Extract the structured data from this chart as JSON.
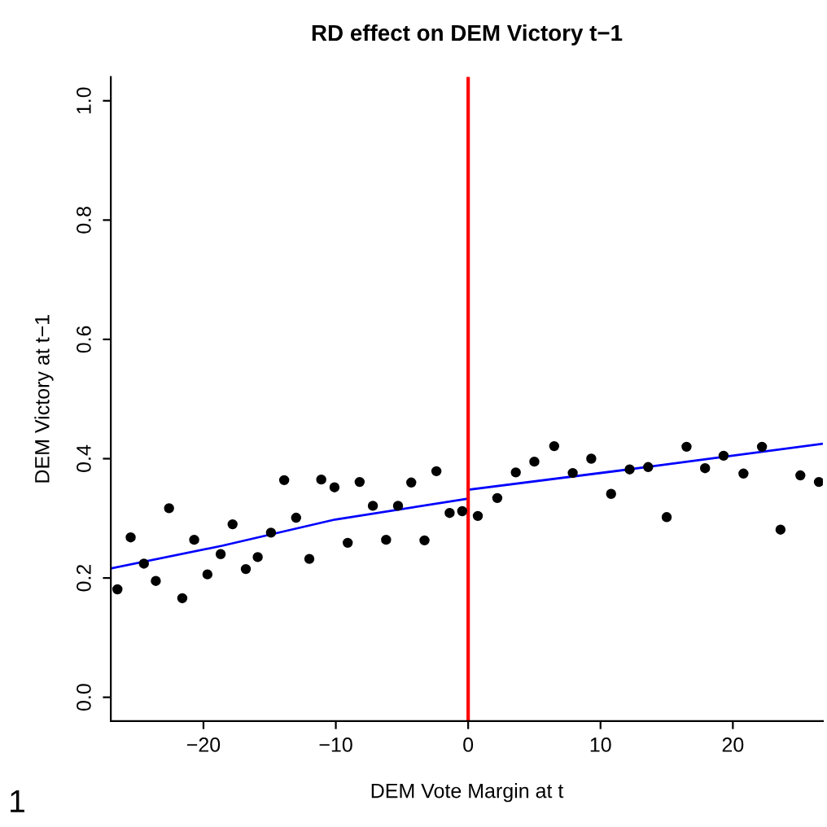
{
  "chart_data": {
    "type": "scatter",
    "title": "RD effect on DEM Victory t−1",
    "xlabel": "DEM Vote Margin at t",
    "ylabel": "DEM Victory at t−1",
    "xlim": [
      -27,
      26.8
    ],
    "ylim": [
      -0.04,
      1.04
    ],
    "xticks": [
      {
        "value": -20,
        "label": "−20"
      },
      {
        "value": -10,
        "label": "−10"
      },
      0,
      10,
      20
    ],
    "yticks": [
      {
        "value": 0,
        "label": "0.0"
      },
      {
        "value": 0.2,
        "label": "0.2"
      },
      {
        "value": 0.4,
        "label": "0.4"
      },
      {
        "value": 0.6,
        "label": "0.6"
      },
      {
        "value": 0.8,
        "label": "0.8"
      },
      {
        "value": 1,
        "label": "1.0"
      }
    ],
    "grid": false,
    "series": [
      {
        "color": "#000000",
        "marker": "circle",
        "x": [
          -26.5,
          -25.5,
          -24.5,
          -23.6,
          -22.6,
          -21.6,
          -20.7,
          -19.7,
          -18.7,
          -17.8,
          -16.8,
          -15.9,
          -14.9,
          -13.9,
          -13.0,
          -12.0,
          -11.1,
          -10.1,
          -9.1,
          -8.2,
          -7.2,
          -6.2,
          -5.3,
          -4.3,
          -3.3,
          -2.4,
          -1.4,
          -0.45,
          0.73,
          2.2,
          3.6,
          5.0,
          6.5,
          7.9,
          9.3,
          10.8,
          12.2,
          13.6,
          15.0,
          16.5,
          17.9,
          19.3,
          20.8,
          22.2,
          23.6,
          25.1,
          26.5
        ],
        "values": [
          0.181,
          0.268,
          0.224,
          0.195,
          0.317,
          0.166,
          0.264,
          0.206,
          0.24,
          0.29,
          0.215,
          0.235,
          0.276,
          0.364,
          0.301,
          0.232,
          0.365,
          0.352,
          0.259,
          0.361,
          0.321,
          0.264,
          0.321,
          0.36,
          0.263,
          0.379,
          0.309,
          0.312,
          0.304,
          0.334,
          0.377,
          0.395,
          0.421,
          0.376,
          0.4,
          0.341,
          0.382,
          0.386,
          0.302,
          0.42,
          0.384,
          0.405,
          0.375,
          0.42,
          0.281,
          0.372,
          0.361
        ]
      },
      {
        "type": "line",
        "color": "#0000ff",
        "line_style": "solid",
        "x": [
          -27,
          -18.6,
          -10.06,
          0
        ],
        "values": [
          0.216,
          0.254,
          0.298,
          0.333
        ]
      },
      {
        "type": "line",
        "color": "#0000ff",
        "line_style": "solid",
        "x": [
          0,
          13.2,
          26.8
        ],
        "values": [
          0.348,
          0.385,
          0.425
        ]
      }
    ],
    "ref_lines": [
      {
        "axis": "x",
        "value": 0,
        "color": "#ff0000",
        "line_style": "solid"
      }
    ],
    "annotations": [
      "1"
    ]
  }
}
